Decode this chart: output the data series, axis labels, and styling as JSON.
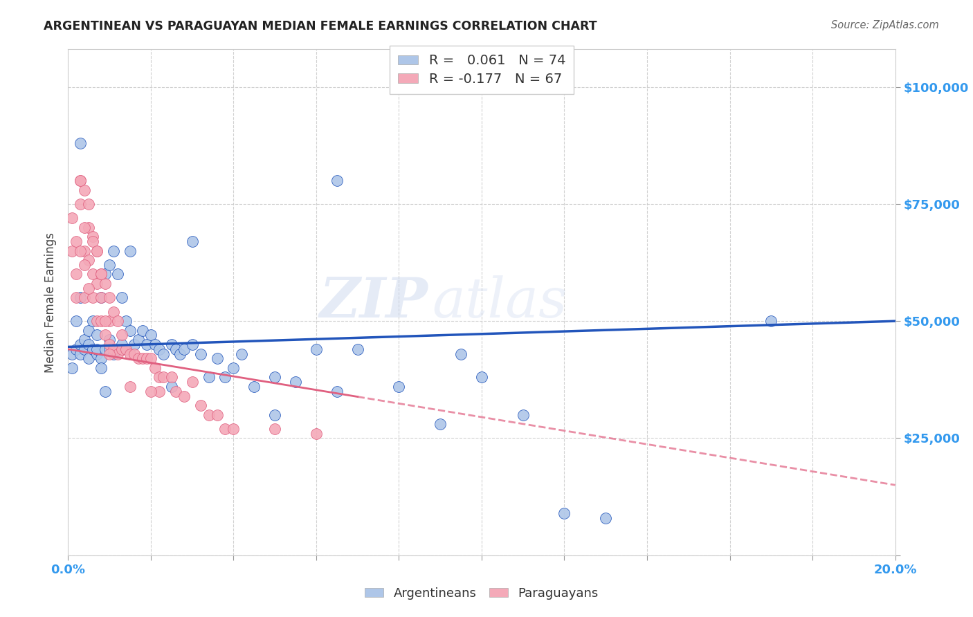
{
  "title": "ARGENTINEAN VS PARAGUAYAN MEDIAN FEMALE EARNINGS CORRELATION CHART",
  "source": "Source: ZipAtlas.com",
  "ylabel": "Median Female Earnings",
  "yticks": [
    0,
    25000,
    50000,
    75000,
    100000
  ],
  "ytick_labels": [
    "",
    "$25,000",
    "$50,000",
    "$75,000",
    "$100,000"
  ],
  "xlim": [
    0.0,
    0.2
  ],
  "ylim": [
    0,
    108000
  ],
  "watermark_zip": "ZIP",
  "watermark_atlas": "atlas",
  "legend_arg_R": " 0.061",
  "legend_arg_N": "74",
  "legend_par_R": "-0.177",
  "legend_par_N": "67",
  "arg_color": "#aec6e8",
  "par_color": "#f4a9b8",
  "arg_line_color": "#2255bb",
  "par_line_color": "#e06080",
  "background_color": "#ffffff",
  "arg_points_x": [
    0.001,
    0.001,
    0.002,
    0.002,
    0.003,
    0.003,
    0.003,
    0.004,
    0.004,
    0.005,
    0.005,
    0.005,
    0.006,
    0.006,
    0.007,
    0.007,
    0.007,
    0.008,
    0.008,
    0.009,
    0.009,
    0.01,
    0.01,
    0.01,
    0.011,
    0.011,
    0.012,
    0.012,
    0.013,
    0.013,
    0.014,
    0.014,
    0.015,
    0.015,
    0.016,
    0.017,
    0.018,
    0.019,
    0.02,
    0.021,
    0.022,
    0.023,
    0.025,
    0.026,
    0.027,
    0.028,
    0.03,
    0.032,
    0.034,
    0.036,
    0.038,
    0.04,
    0.042,
    0.045,
    0.05,
    0.055,
    0.06,
    0.065,
    0.07,
    0.08,
    0.09,
    0.095,
    0.1,
    0.11,
    0.12,
    0.13,
    0.003,
    0.17,
    0.05,
    0.065,
    0.025,
    0.03,
    0.008,
    0.009
  ],
  "arg_points_y": [
    43000,
    40000,
    44000,
    50000,
    43000,
    55000,
    45000,
    44000,
    46000,
    42000,
    48000,
    45000,
    50000,
    44000,
    43000,
    47000,
    44000,
    55000,
    42000,
    60000,
    44000,
    62000,
    46000,
    44000,
    65000,
    43000,
    60000,
    44000,
    55000,
    45000,
    50000,
    44000,
    48000,
    65000,
    45000,
    46000,
    48000,
    45000,
    47000,
    45000,
    44000,
    43000,
    45000,
    44000,
    43000,
    44000,
    45000,
    43000,
    38000,
    42000,
    38000,
    40000,
    43000,
    36000,
    38000,
    37000,
    44000,
    35000,
    44000,
    36000,
    28000,
    43000,
    38000,
    30000,
    9000,
    8000,
    88000,
    50000,
    30000,
    80000,
    36000,
    67000,
    40000,
    35000
  ],
  "par_points_x": [
    0.001,
    0.001,
    0.002,
    0.002,
    0.002,
    0.003,
    0.003,
    0.004,
    0.004,
    0.004,
    0.005,
    0.005,
    0.006,
    0.006,
    0.006,
    0.007,
    0.007,
    0.007,
    0.008,
    0.008,
    0.008,
    0.009,
    0.009,
    0.01,
    0.01,
    0.01,
    0.011,
    0.011,
    0.012,
    0.012,
    0.013,
    0.013,
    0.014,
    0.015,
    0.016,
    0.017,
    0.018,
    0.019,
    0.02,
    0.021,
    0.022,
    0.023,
    0.025,
    0.026,
    0.028,
    0.03,
    0.032,
    0.034,
    0.036,
    0.038,
    0.003,
    0.004,
    0.005,
    0.006,
    0.007,
    0.008,
    0.009,
    0.04,
    0.05,
    0.06,
    0.003,
    0.004,
    0.005,
    0.022,
    0.015,
    0.02,
    0.01
  ],
  "par_points_y": [
    65000,
    72000,
    67000,
    60000,
    55000,
    80000,
    75000,
    78000,
    65000,
    55000,
    70000,
    63000,
    68000,
    60000,
    55000,
    65000,
    58000,
    50000,
    60000,
    55000,
    50000,
    58000,
    47000,
    55000,
    50000,
    45000,
    52000,
    44000,
    50000,
    43000,
    47000,
    44000,
    44000,
    43000,
    43000,
    42000,
    42000,
    42000,
    42000,
    40000,
    38000,
    38000,
    38000,
    35000,
    34000,
    37000,
    32000,
    30000,
    30000,
    27000,
    80000,
    70000,
    57000,
    67000,
    65000,
    60000,
    50000,
    27000,
    27000,
    26000,
    65000,
    62000,
    75000,
    35000,
    36000,
    35000,
    43000
  ],
  "arg_line_x0": 0.0,
  "arg_line_x1": 0.2,
  "arg_line_y0": 44500,
  "arg_line_y1": 50000,
  "par_line_x0": 0.0,
  "par_line_x1": 0.2,
  "par_line_y0": 44000,
  "par_line_y1": 15000
}
